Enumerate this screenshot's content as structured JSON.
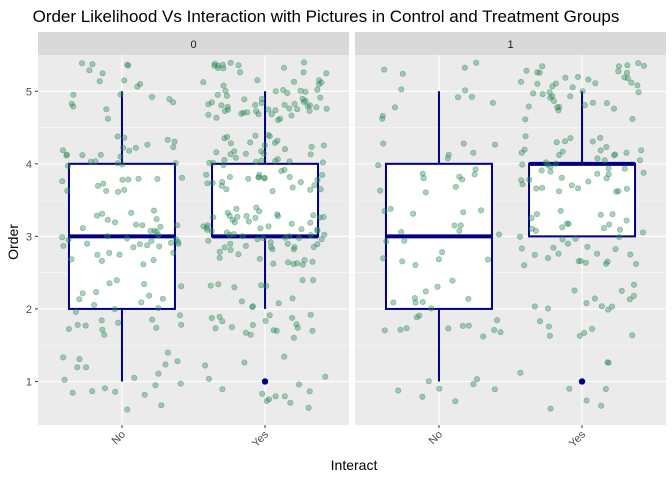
{
  "chart_data": {
    "type": "box",
    "title": "Order Likelihood Vs Interaction with Pictures in Control and Treatment Groups",
    "xlabel": "Interact",
    "ylabel": "Order",
    "categories": [
      "No",
      "Yes"
    ],
    "ylim": [
      0.4,
      5.5
    ],
    "yticks": [
      1,
      2,
      3,
      4,
      5
    ],
    "grid": true,
    "colors": {
      "panel_bg": "#ebebeb",
      "strip_bg": "#d9d9d9",
      "grid": "#ffffff",
      "box": "#000080",
      "box_fill": "#ffffff",
      "points": "#2e8b57",
      "axis_text": "#4d4d4d"
    },
    "panels": [
      {
        "label": "0",
        "boxes": [
          {
            "category": "No",
            "min": 1,
            "q1": 2,
            "median": 3,
            "q3": 4,
            "max": 5,
            "outliers": []
          },
          {
            "category": "Yes",
            "min": 2,
            "q1": 3,
            "median": 3,
            "q3": 4,
            "max": 5,
            "outliers": [
              1
            ]
          }
        ],
        "points_per_category": [
          135,
          230
        ]
      },
      {
        "label": "1",
        "boxes": [
          {
            "category": "No",
            "min": 1,
            "q1": 2,
            "median": 3,
            "q3": 4,
            "max": 5,
            "outliers": []
          },
          {
            "category": "Yes",
            "min": 3,
            "q1": 3,
            "median": 4,
            "q3": 4,
            "max": 5,
            "outliers": [
              1
            ]
          }
        ],
        "points_per_category": [
          75,
          150
        ]
      }
    ]
  }
}
